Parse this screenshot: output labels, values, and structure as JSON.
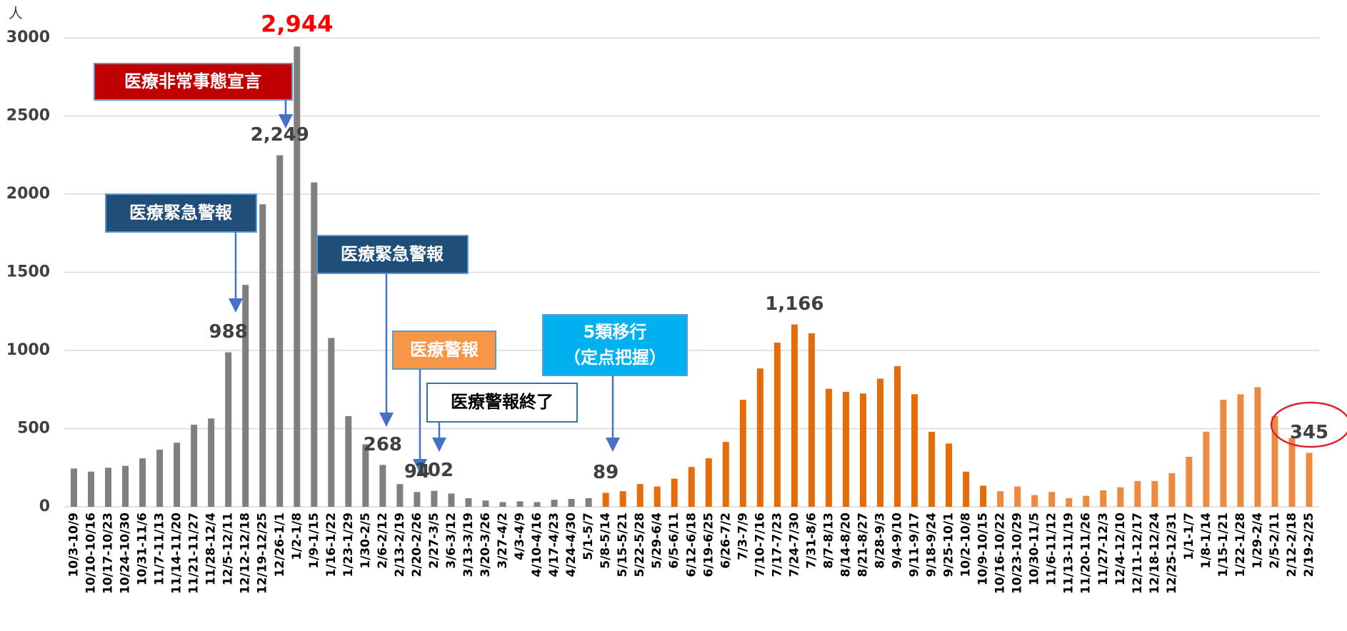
{
  "chart_data": {
    "type": "bar",
    "unit": "人",
    "categories": [
      "10/3-10/9",
      "10/10-10/16",
      "10/17-10/23",
      "10/24-10/30",
      "10/31-11/6",
      "11/7-11/13",
      "11/14-11/20",
      "11/21-11/27",
      "11/28-12/4",
      "12/5-12/11",
      "12/12-12/18",
      "12/19-12/25",
      "12/26-1/1",
      "1/2-1/8",
      "1/9-1/15",
      "1/16-1/22",
      "1/23-1/29",
      "1/30-2/5",
      "2/6-2/12",
      "2/13-2/19",
      "2/20-2/26",
      "2/27-3/5",
      "3/6-3/12",
      "3/13-3/19",
      "3/20-3/26",
      "3/27-4/2",
      "4/3-4/9",
      "4/10-4/16",
      "4/17-4/23",
      "4/24-4/30",
      "5/1-5/7",
      "5/8-5/14",
      "5/15-5/21",
      "5/22-5/28",
      "5/29-6/4",
      "6/5-6/11",
      "6/12-6/18",
      "6/19-6/25",
      "6/26-7/2",
      "7/3-7/9",
      "7/10-7/16",
      "7/17-7/23",
      "7/24-7/30",
      "7/31-8/6",
      "8/7-8/13",
      "8/14-8/20",
      "8/21-8/27",
      "8/28-9/3",
      "9/4-9/10",
      "9/11-9/17",
      "9/18-9/24",
      "9/25-10/1",
      "10/2-10/8",
      "10/9-10/15",
      "10/16-10/22",
      "10/23-10/29",
      "10/30-11/5",
      "11/6-11/12",
      "11/13-11/19",
      "11/20-11/26",
      "11/27-12/3",
      "12/4-12/10",
      "12/11-12/17",
      "12/18-12/24",
      "12/25-12/31",
      "1/1-1/7",
      "1/8-1/14",
      "1/15-1/21",
      "1/22-1/28",
      "1/29-2/4",
      "2/5-2/11",
      "2/12-2/18",
      "2/19-2/25"
    ],
    "values": [
      245,
      225,
      250,
      262,
      310,
      365,
      410,
      525,
      565,
      988,
      1420,
      1935,
      2249,
      2944,
      2075,
      1080,
      580,
      400,
      268,
      145,
      94,
      102,
      85,
      55,
      40,
      30,
      35,
      30,
      45,
      50,
      55,
      89,
      100,
      145,
      130,
      180,
      255,
      310,
      415,
      685,
      885,
      1050,
      1166,
      1110,
      755,
      735,
      725,
      820,
      900,
      720,
      480,
      405,
      225,
      135,
      100,
      130,
      75,
      95,
      55,
      70,
      105,
      125,
      165,
      165,
      215,
      320,
      480,
      685,
      720,
      765,
      580,
      440,
      345
    ],
    "value_labels": [
      null,
      null,
      null,
      null,
      null,
      null,
      null,
      null,
      null,
      "988",
      null,
      null,
      "2,249",
      "2,944",
      null,
      null,
      null,
      null,
      "268",
      null,
      "94",
      "102",
      null,
      null,
      null,
      null,
      null,
      null,
      null,
      null,
      null,
      "89",
      null,
      null,
      null,
      null,
      null,
      null,
      null,
      null,
      null,
      null,
      "1,166",
      null,
      null,
      null,
      null,
      null,
      null,
      null,
      null,
      null,
      null,
      null,
      null,
      null,
      null,
      null,
      null,
      null,
      null,
      null,
      null,
      null,
      null,
      null,
      null,
      null,
      null,
      null,
      null,
      null,
      "345"
    ],
    "colors": [
      "#7f7f7f",
      "#7f7f7f",
      "#7f7f7f",
      "#7f7f7f",
      "#7f7f7f",
      "#7f7f7f",
      "#7f7f7f",
      "#7f7f7f",
      "#7f7f7f",
      "#7f7f7f",
      "#7f7f7f",
      "#7f7f7f",
      "#7f7f7f",
      "#7f7f7f",
      "#7f7f7f",
      "#7f7f7f",
      "#7f7f7f",
      "#7f7f7f",
      "#7f7f7f",
      "#7f7f7f",
      "#7f7f7f",
      "#7f7f7f",
      "#7f7f7f",
      "#7f7f7f",
      "#7f7f7f",
      "#7f7f7f",
      "#7f7f7f",
      "#7f7f7f",
      "#7f7f7f",
      "#7f7f7f",
      "#7f7f7f",
      "#e46c0a",
      "#e46c0a",
      "#e46c0a",
      "#e46c0a",
      "#e46c0a",
      "#e46c0a",
      "#e46c0a",
      "#e46c0a",
      "#e46c0a",
      "#e46c0a",
      "#e46c0a",
      "#e46c0a",
      "#e46c0a",
      "#e46c0a",
      "#e46c0a",
      "#e46c0a",
      "#e46c0a",
      "#e46c0a",
      "#e46c0a",
      "#e46c0a",
      "#e46c0a",
      "#e46c0a",
      "#e46c0a",
      "#ed8a42",
      "#ed8a42",
      "#ed8a42",
      "#ed8a42",
      "#ed8a42",
      "#ed8a42",
      "#ed8a42",
      "#ed8a42",
      "#ed8a42",
      "#ed8a42",
      "#ed8a42",
      "#ed8a42",
      "#ed8a42",
      "#ed8a42",
      "#ed8a42",
      "#ed8a42",
      "#ed8a42",
      "#ed8a42",
      "#ed8a42"
    ],
    "ylim": [
      0,
      3000
    ],
    "yticks": [
      0,
      500,
      1000,
      1500,
      2000,
      2500,
      3000
    ],
    "grid": true,
    "annotations": [
      "医療非常事態宣言",
      "医療緊急警報",
      "医療緊急警報",
      "医療警報",
      "医療警報終了",
      "5類移行",
      "（定点把握）"
    ]
  }
}
